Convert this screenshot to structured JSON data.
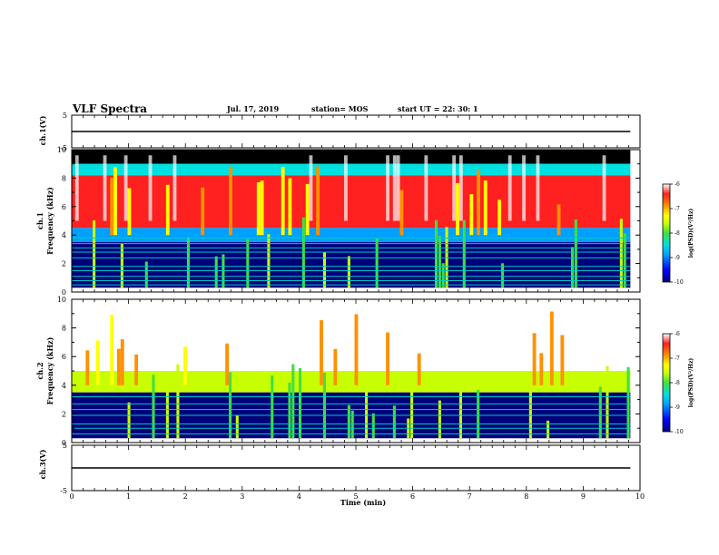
{
  "header": {
    "title": "VLF Spectra",
    "date": "Jul. 17, 2019",
    "station": "station= MOS",
    "start": "start UT =  22: 30: 1"
  },
  "chart_data": [
    {
      "type": "line",
      "panel": "ch1-voltage",
      "ylabel": "ch.1(V)",
      "ylim": [
        -5,
        5
      ],
      "yticks": [
        "5",
        "-5"
      ],
      "series": [
        {
          "x": [
            0,
            9.83
          ],
          "y": [
            0,
            0
          ]
        }
      ]
    },
    {
      "type": "heatmap",
      "panel": "ch1-spectrogram",
      "ylabel": "ch.1\nFrequency (kHz)",
      "ylim": [
        0,
        10
      ],
      "yticks": [
        "0",
        "2",
        "4",
        "6",
        "8",
        "10"
      ],
      "colorbar": {
        "label": "log(PSD)(V²/Hz)",
        "ticks": [
          "-6",
          "-7",
          "-8",
          "-9",
          "-10"
        ],
        "range": [
          -10,
          -6
        ]
      },
      "layers": [
        {
          "fmin": 9.0,
          "fmax": 10.0,
          "level": "no data (black)"
        },
        {
          "fmin": 8.2,
          "fmax": 9.0,
          "level": -8.5
        },
        {
          "fmin": 4.5,
          "fmax": 8.2,
          "level": -6.8
        },
        {
          "fmin": 3.5,
          "fmax": 4.5,
          "level": -8.8
        },
        {
          "fmin": 0.3,
          "fmax": 3.5,
          "level": -9.8
        }
      ],
      "lines_khz": [
        0.5,
        0.8,
        1.1,
        1.5,
        1.8,
        2.4,
        2.8,
        3.1,
        3.4,
        3.8
      ]
    },
    {
      "type": "heatmap",
      "panel": "ch2-spectrogram",
      "ylabel": "ch.2\nFrequency (kHz)",
      "ylim": [
        0,
        10
      ],
      "yticks": [
        "0",
        "2",
        "4",
        "6",
        "8",
        "10"
      ],
      "colorbar": {
        "label": "log(PSD)(V²/Hz)",
        "ticks": [
          "-6",
          "-7",
          "-8",
          "-9",
          "-10"
        ],
        "range": [
          -10,
          -6
        ]
      },
      "layers": [
        {
          "fmin": 5.0,
          "fmax": 10.0,
          "level": -6.1
        },
        {
          "fmin": 3.5,
          "fmax": 5.0,
          "level": -7.8
        },
        {
          "fmin": 0.3,
          "fmax": 3.5,
          "level": -9.9
        }
      ],
      "lines_khz": [
        0.6,
        1.0,
        1.3,
        1.9,
        2.3,
        2.7,
        3.2
      ]
    },
    {
      "type": "line",
      "panel": "ch3-voltage",
      "ylabel": "ch.3(V)",
      "ylim": [
        -5,
        5
      ],
      "yticks": [
        "5",
        "-5"
      ],
      "series": [
        {
          "x": [
            0,
            9.83
          ],
          "y": [
            0,
            0
          ]
        }
      ]
    }
  ],
  "xaxis": {
    "label": "Time (min)",
    "xlim": [
      0,
      10
    ],
    "data_end": 9.83,
    "ticks": [
      "0",
      "1",
      "2",
      "3",
      "4",
      "5",
      "6",
      "7",
      "8",
      "9",
      "10"
    ]
  },
  "colors": {
    "frame": "#000000",
    "nodata": "#000000",
    "colormap": [
      "#00007a",
      "#0000ff",
      "#00a0ff",
      "#00e0e0",
      "#40e040",
      "#c8ff00",
      "#ffff00",
      "#ff9000",
      "#ff2020",
      "#ffffff"
    ]
  }
}
